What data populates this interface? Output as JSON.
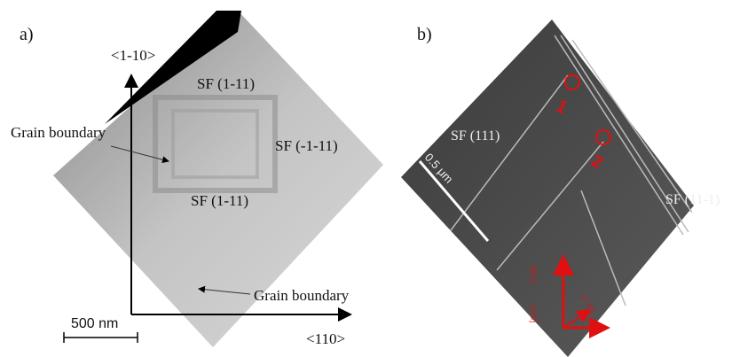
{
  "panel_a": {
    "label": "a)",
    "axis_up": "<1-10>",
    "axis_right": "<110>",
    "sf_top": "SF (1-11)",
    "sf_right": "SF (-1-11)",
    "sf_bottom": "SF (1-11)",
    "grain_boundary_upper": "Grain boundary",
    "grain_boundary_lower": "Grain boundary",
    "scale_bar": "500 nm"
  },
  "panel_b": {
    "label": "b)",
    "sf_left": "SF (111)",
    "sf_right": "SF (11-1)",
    "scale_bar": "0.5 μm",
    "marker_1": "1",
    "marker_2": "2",
    "dir_up": "[001]",
    "dir_diag": "[110]",
    "dir_right": "[1-10]"
  }
}
